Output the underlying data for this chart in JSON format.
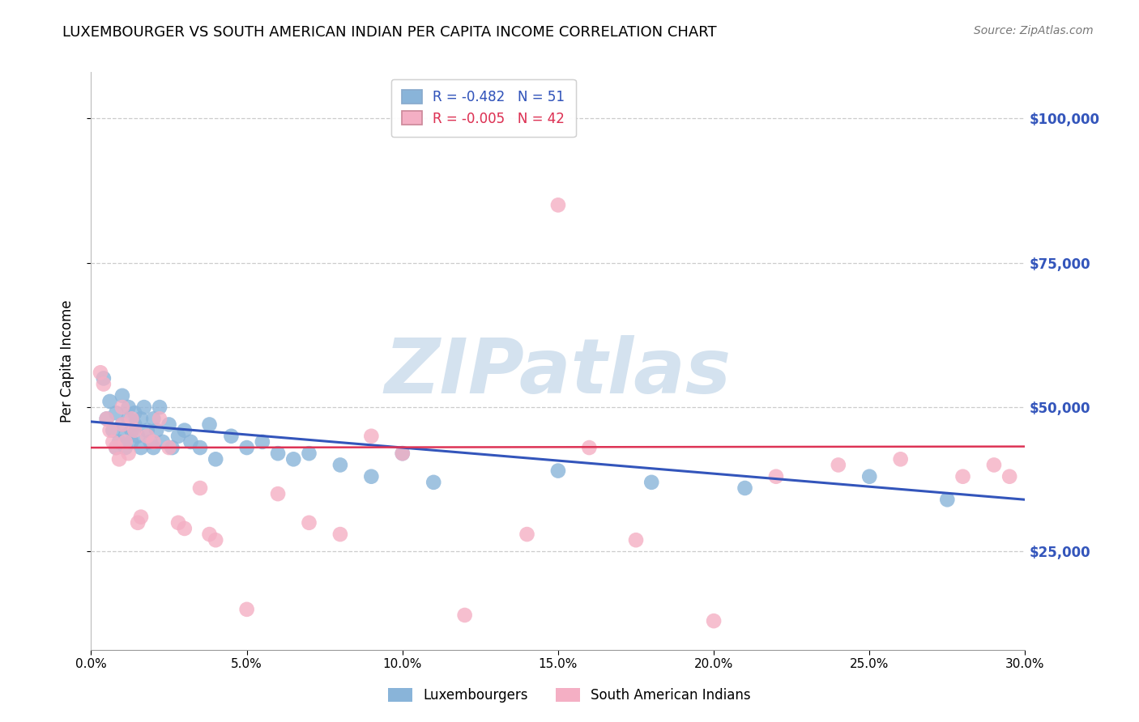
{
  "title": "LUXEMBOURGER VS SOUTH AMERICAN INDIAN PER CAPITA INCOME CORRELATION CHART",
  "source_text": "Source: ZipAtlas.com",
  "ylabel": "Per Capita Income",
  "xlim": [
    0,
    0.3
  ],
  "ylim": [
    8000,
    108000
  ],
  "xtick_values": [
    0.0,
    0.05,
    0.1,
    0.15,
    0.2,
    0.25,
    0.3
  ],
  "xtick_labels": [
    "0.0%",
    "5.0%",
    "10.0%",
    "15.0%",
    "20.0%",
    "25.0%",
    "30.0%"
  ],
  "ytick_values": [
    25000,
    50000,
    75000,
    100000
  ],
  "ytick_labels": [
    "$25,000",
    "$50,000",
    "$75,000",
    "$100,000"
  ],
  "blue_scatter_x": [
    0.004,
    0.005,
    0.006,
    0.007,
    0.008,
    0.008,
    0.009,
    0.01,
    0.011,
    0.011,
    0.012,
    0.012,
    0.013,
    0.013,
    0.014,
    0.014,
    0.015,
    0.016,
    0.017,
    0.018,
    0.019,
    0.02,
    0.02,
    0.021,
    0.022,
    0.023,
    0.025,
    0.026,
    0.028,
    0.03,
    0.032,
    0.035,
    0.038,
    0.04,
    0.045,
    0.05,
    0.055,
    0.06,
    0.065,
    0.07,
    0.08,
    0.09,
    0.1,
    0.11,
    0.15,
    0.18,
    0.21,
    0.25,
    0.275,
    0.01,
    0.016
  ],
  "blue_scatter_y": [
    55000,
    48000,
    51000,
    46000,
    43000,
    49000,
    44000,
    52000,
    45000,
    43000,
    50000,
    48000,
    46000,
    44000,
    49000,
    47000,
    45000,
    48000,
    50000,
    46000,
    44000,
    48000,
    43000,
    46000,
    50000,
    44000,
    47000,
    43000,
    45000,
    46000,
    44000,
    43000,
    47000,
    41000,
    45000,
    43000,
    44000,
    42000,
    41000,
    42000,
    40000,
    38000,
    42000,
    37000,
    39000,
    37000,
    36000,
    38000,
    34000,
    47000,
    43000
  ],
  "pink_scatter_x": [
    0.003,
    0.004,
    0.005,
    0.006,
    0.007,
    0.008,
    0.009,
    0.01,
    0.01,
    0.011,
    0.012,
    0.013,
    0.014,
    0.015,
    0.016,
    0.018,
    0.02,
    0.022,
    0.025,
    0.028,
    0.03,
    0.035,
    0.038,
    0.04,
    0.06,
    0.07,
    0.09,
    0.1,
    0.12,
    0.2,
    0.22,
    0.24,
    0.26,
    0.28,
    0.29,
    0.15,
    0.175,
    0.05,
    0.08,
    0.14,
    0.16,
    0.295
  ],
  "pink_scatter_y": [
    56000,
    54000,
    48000,
    46000,
    44000,
    43000,
    41000,
    50000,
    47000,
    44000,
    42000,
    48000,
    46000,
    30000,
    31000,
    45000,
    44000,
    48000,
    43000,
    30000,
    29000,
    36000,
    28000,
    27000,
    35000,
    30000,
    45000,
    42000,
    14000,
    13000,
    38000,
    40000,
    41000,
    38000,
    40000,
    85000,
    27000,
    15000,
    28000,
    28000,
    43000,
    38000
  ],
  "blue_trend_x": [
    0.0,
    0.3
  ],
  "blue_trend_y": [
    47500,
    34000
  ],
  "pink_trend_x": [
    0.0,
    0.3
  ],
  "pink_trend_y": [
    43000,
    43200
  ],
  "blue_dot_color": "#89b4d9",
  "pink_dot_color": "#f4afc4",
  "blue_line_color": "#3355bb",
  "pink_line_color": "#dd3355",
  "blue_legend_color": "#3355bb",
  "pink_legend_color": "#dd3355",
  "legend_R_blue": "-0.482",
  "legend_N_blue": "51",
  "legend_R_pink": "-0.005",
  "legend_N_pink": "42",
  "grid_color": "#cccccc",
  "bg_color": "#ffffff",
  "ytick_color": "#3355bb",
  "watermark": "ZIPatlas",
  "watermark_color": "#d4e2ef",
  "title_fontsize": 13,
  "tick_fontsize": 11,
  "legend_fontsize": 12,
  "ylabel_fontsize": 12,
  "source_fontsize": 10
}
